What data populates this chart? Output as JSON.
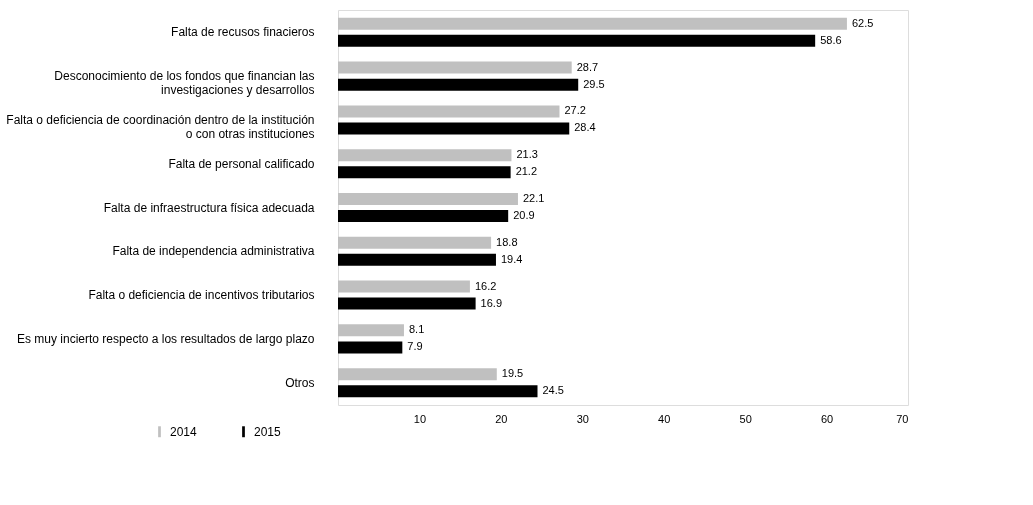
{
  "chart_data": {
    "type": "bar",
    "orientation": "horizontal",
    "categories": [
      "Falta de recusos finacieros",
      "Desconocimiento de los fondos que financian las\ninvestigaciones y desarrollos",
      "Falta o deficiencia de coordinación dentro de la institución\no con otras instituciones",
      "Falta de personal calificado",
      "Falta de infraestructura física adecuada",
      "Falta de independencia administrativa",
      "Falta o deficiencia de incentivos tributarios",
      "Es muy incierto respecto a los resultados de largo plazo",
      "Otros"
    ],
    "series": [
      {
        "name": "2014",
        "color": "#c0c0c0",
        "values": [
          62.5,
          28.7,
          27.2,
          21.3,
          22.1,
          18.8,
          16.2,
          8.1,
          19.5
        ]
      },
      {
        "name": "2015",
        "color": "#000000",
        "values": [
          58.6,
          29.5,
          28.4,
          21.2,
          20.9,
          19.4,
          16.9,
          7.9,
          24.5
        ]
      }
    ],
    "xlim": [
      0,
      70
    ],
    "xticks": [
      10,
      20,
      30,
      40,
      50,
      60,
      70
    ],
    "grid": false,
    "legend": "bottom left",
    "data_labels": true
  }
}
